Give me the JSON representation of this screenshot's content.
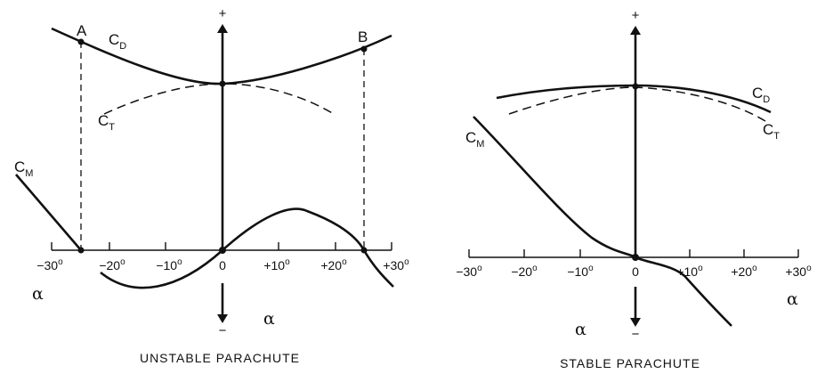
{
  "unstable": {
    "caption": "UNSTABLE PARACHUTE",
    "plus_sign": "+",
    "minus_sign": "−",
    "alpha_left": "α",
    "alpha_bottom": "α",
    "point_a": "A",
    "point_b": "B",
    "cd": {
      "main": "C",
      "sub": "D"
    },
    "ct": {
      "main": "C",
      "sub": "T"
    },
    "cm": {
      "main": "C",
      "sub": "M"
    },
    "ticks": [
      {
        "text": "−30",
        "sup": "o"
      },
      {
        "text": "−20",
        "sup": "o"
      },
      {
        "text": "−10",
        "sup": "o"
      },
      {
        "text": "0",
        "sup": ""
      },
      {
        "text": "+10",
        "sup": "o"
      },
      {
        "text": "+20",
        "sup": "o"
      },
      {
        "text": "+30",
        "sup": "o"
      }
    ]
  },
  "stable": {
    "caption": "STABLE PARACHUTE",
    "plus_sign": "+",
    "minus_sign": "−",
    "alpha_right": "α",
    "alpha_bottom": "α",
    "cd": {
      "main": "C",
      "sub": "D"
    },
    "ct": {
      "main": "C",
      "sub": "T"
    },
    "cm": {
      "main": "C",
      "sub": "M"
    },
    "ticks": [
      {
        "text": "−30",
        "sup": "o"
      },
      {
        "text": "−20",
        "sup": "o"
      },
      {
        "text": "−10",
        "sup": "o"
      },
      {
        "text": "0",
        "sup": ""
      },
      {
        "text": "+10",
        "sup": "o"
      },
      {
        "text": "+20",
        "sup": "o"
      },
      {
        "text": "+30",
        "sup": "o"
      }
    ]
  }
}
